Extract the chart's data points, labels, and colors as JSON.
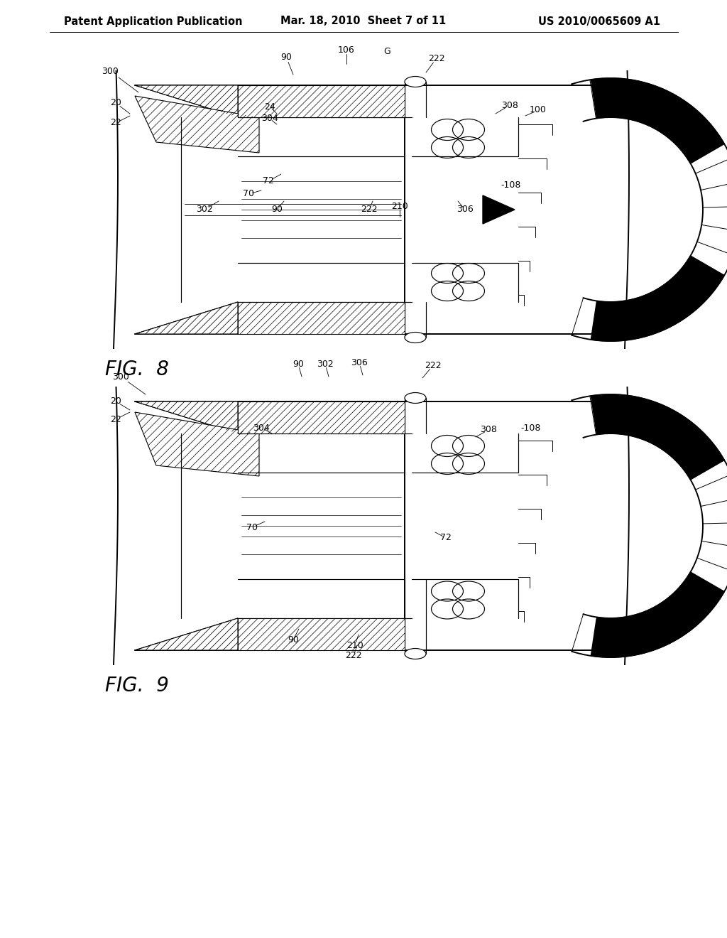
{
  "background_color": "#ffffff",
  "header_left": "Patent Application Publication",
  "header_center": "Mar. 18, 2010  Sheet 7 of 11",
  "header_right": "US 2010/0065609 A1",
  "fig8_label": "FIG.  8",
  "fig9_label": "FIG.  9",
  "header_fontsize": 10.5,
  "fig_label_fontsize": 20,
  "ann_fontsize": 9.0
}
